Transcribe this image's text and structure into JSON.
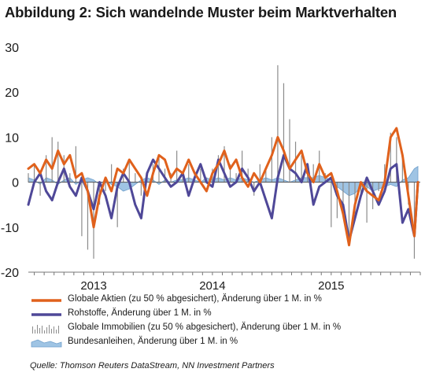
{
  "chart_data": {
    "type": "line",
    "title": "Abbildung 2: Sich wandelnde Muster beim Marktverhalten",
    "ylim": [
      -20,
      30
    ],
    "yticks": [
      30,
      20,
      10,
      0,
      -10,
      -20
    ],
    "xlim": [
      2012.45,
      2015.75
    ],
    "xticks": [
      {
        "label": "2013",
        "x": 2013.0
      },
      {
        "label": "2014",
        "x": 2014.0
      },
      {
        "label": "2015",
        "x": 2015.0
      }
    ],
    "grid": false,
    "legend_position": "bottom",
    "series": [
      {
        "name": "Globale Aktien (zu 50 % abgesichert), Änderung über 1 M. in %",
        "style": "line",
        "color": "#e0611c",
        "x": [
          2012.45,
          2012.5,
          2012.55,
          2012.6,
          2012.65,
          2012.7,
          2012.75,
          2012.8,
          2012.85,
          2012.9,
          2012.95,
          2013.0,
          2013.05,
          2013.1,
          2013.15,
          2013.2,
          2013.25,
          2013.3,
          2013.35,
          2013.4,
          2013.45,
          2013.5,
          2013.55,
          2013.6,
          2013.65,
          2013.7,
          2013.75,
          2013.8,
          2013.85,
          2013.9,
          2013.95,
          2014.0,
          2014.05,
          2014.1,
          2014.15,
          2014.2,
          2014.25,
          2014.3,
          2014.35,
          2014.4,
          2014.45,
          2014.5,
          2014.55,
          2014.6,
          2014.65,
          2014.7,
          2014.75,
          2014.8,
          2014.85,
          2014.9,
          2014.95,
          2015.0,
          2015.05,
          2015.1,
          2015.15,
          2015.2,
          2015.25,
          2015.3,
          2015.35,
          2015.4,
          2015.45,
          2015.5,
          2015.55,
          2015.6,
          2015.65,
          2015.7,
          2015.73
        ],
        "values": [
          3,
          4,
          2,
          5,
          3,
          7,
          4,
          6,
          1,
          2,
          -2,
          -10,
          -3,
          1,
          -2,
          3,
          2,
          5,
          3,
          1,
          -3,
          2,
          6,
          5,
          1,
          3,
          2,
          5,
          2,
          0,
          -2,
          2,
          4,
          7,
          3,
          5,
          1,
          -1,
          2,
          0,
          3,
          6,
          10,
          7,
          3,
          5,
          7,
          2,
          0,
          4,
          1,
          2,
          -2,
          -7,
          -14,
          -5,
          0,
          -2,
          -3,
          -4,
          0,
          10,
          12,
          6,
          -3,
          -12,
          0
        ]
      },
      {
        "name": "Rohstoffe, Änderung über 1 M. in %",
        "style": "line",
        "color": "#4f4898",
        "x": [
          2012.45,
          2012.5,
          2012.55,
          2012.6,
          2012.65,
          2012.7,
          2012.75,
          2012.8,
          2012.85,
          2012.9,
          2012.95,
          2013.0,
          2013.05,
          2013.1,
          2013.15,
          2013.2,
          2013.25,
          2013.3,
          2013.35,
          2013.4,
          2013.45,
          2013.5,
          2013.55,
          2013.6,
          2013.65,
          2013.7,
          2013.75,
          2013.8,
          2013.85,
          2013.9,
          2013.95,
          2014.0,
          2014.05,
          2014.1,
          2014.15,
          2014.2,
          2014.25,
          2014.3,
          2014.35,
          2014.4,
          2014.45,
          2014.5,
          2014.55,
          2014.6,
          2014.65,
          2014.7,
          2014.75,
          2014.8,
          2014.85,
          2014.9,
          2014.95,
          2015.0,
          2015.05,
          2015.1,
          2015.15,
          2015.2,
          2015.25,
          2015.3,
          2015.35,
          2015.4,
          2015.45,
          2015.5,
          2015.55,
          2015.6,
          2015.65,
          2015.7,
          2015.73
        ],
        "values": [
          -5,
          0,
          2,
          -2,
          -4,
          0,
          3,
          -1,
          -3,
          1,
          -2,
          -6,
          0,
          -3,
          -8,
          -1,
          2,
          0,
          -5,
          -8,
          2,
          5,
          3,
          1,
          -1,
          0,
          2,
          -3,
          1,
          4,
          0,
          -1,
          5,
          2,
          -1,
          0,
          3,
          1,
          -2,
          0,
          -4,
          -8,
          1,
          6,
          3,
          2,
          0,
          4,
          -5,
          -1,
          0,
          1,
          -3,
          -5,
          -13,
          -8,
          -3,
          1,
          -2,
          -5,
          -2,
          3,
          4,
          -9,
          -6,
          -12,
          0
        ]
      },
      {
        "name": "Globale Immobilien (zu 50 % abgesichert), Änderung über 1 M. in %",
        "style": "bars",
        "color": "#8c8c8c",
        "x": [
          2012.45,
          2012.5,
          2012.55,
          2012.6,
          2012.65,
          2012.7,
          2012.75,
          2012.8,
          2012.85,
          2012.9,
          2012.95,
          2013.0,
          2013.05,
          2013.1,
          2013.15,
          2013.2,
          2013.25,
          2013.3,
          2013.35,
          2013.4,
          2013.45,
          2013.5,
          2013.55,
          2013.6,
          2013.65,
          2013.7,
          2013.75,
          2013.8,
          2013.85,
          2013.9,
          2013.95,
          2014.0,
          2014.05,
          2014.1,
          2014.15,
          2014.2,
          2014.25,
          2014.3,
          2014.35,
          2014.4,
          2014.45,
          2014.5,
          2014.55,
          2014.6,
          2014.65,
          2014.7,
          2014.75,
          2014.8,
          2014.85,
          2014.9,
          2014.95,
          2015.0,
          2015.05,
          2015.1,
          2015.15,
          2015.2,
          2015.25,
          2015.3,
          2015.35,
          2015.4,
          2015.45,
          2015.5,
          2015.55,
          2015.6,
          2015.65,
          2015.7,
          2015.73
        ],
        "values": [
          2,
          4,
          -3,
          6,
          10,
          9,
          6,
          2,
          8,
          -12,
          -15,
          -17,
          -5,
          -2,
          4,
          -10,
          3,
          5,
          2,
          -3,
          2,
          4,
          6,
          3,
          2,
          7,
          2,
          4,
          2,
          3,
          1,
          3,
          6,
          8,
          4,
          2,
          7,
          3,
          -3,
          4,
          3,
          10,
          26,
          22,
          14,
          9,
          6,
          3,
          4,
          7,
          2,
          -10,
          -8,
          -5,
          -13,
          -7,
          -3,
          -9,
          -6,
          -2,
          4,
          11,
          10,
          6,
          -5,
          -17,
          -2
        ]
      },
      {
        "name": "Bundesanleihen, Änderung über 1 M. in %",
        "style": "area",
        "color": "#9fc4e4",
        "x": [
          2012.45,
          2012.5,
          2012.55,
          2012.6,
          2012.65,
          2012.7,
          2012.75,
          2012.8,
          2012.85,
          2012.9,
          2012.95,
          2013.0,
          2013.05,
          2013.1,
          2013.15,
          2013.2,
          2013.25,
          2013.3,
          2013.35,
          2013.4,
          2013.45,
          2013.5,
          2013.55,
          2013.6,
          2013.65,
          2013.7,
          2013.75,
          2013.8,
          2013.85,
          2013.9,
          2013.95,
          2014.0,
          2014.05,
          2014.1,
          2014.15,
          2014.2,
          2014.25,
          2014.3,
          2014.35,
          2014.4,
          2014.45,
          2014.5,
          2014.55,
          2014.6,
          2014.65,
          2014.7,
          2014.75,
          2014.8,
          2014.85,
          2014.9,
          2014.95,
          2015.0,
          2015.05,
          2015.1,
          2015.15,
          2015.2,
          2015.25,
          2015.3,
          2015.35,
          2015.4,
          2015.45,
          2015.5,
          2015.55,
          2015.6,
          2015.65,
          2015.7,
          2015.73
        ],
        "values": [
          1,
          0.5,
          -0.5,
          1,
          0.5,
          -0.5,
          0.5,
          1,
          -0.5,
          0.5,
          1,
          0.5,
          -0.5,
          0.5,
          -0.5,
          -1,
          -2,
          -1.5,
          -0.5,
          0.5,
          1,
          0.5,
          -0.5,
          0.5,
          0,
          0.5,
          0.5,
          1,
          0.5,
          0,
          1,
          0.5,
          1,
          0.5,
          1,
          0.5,
          1,
          0.5,
          0,
          0.5,
          1,
          0.5,
          1,
          0.5,
          0,
          0.5,
          1,
          1,
          1,
          1.5,
          1,
          0.5,
          -1,
          -2,
          -3,
          -2.5,
          -1,
          -1,
          -2,
          -1.5,
          -1,
          -0.5,
          -1,
          0.5,
          1,
          3,
          3.5
        ]
      }
    ],
    "source": "Quelle:  Thomson Reuters DataStream, NN Investment Partners"
  }
}
